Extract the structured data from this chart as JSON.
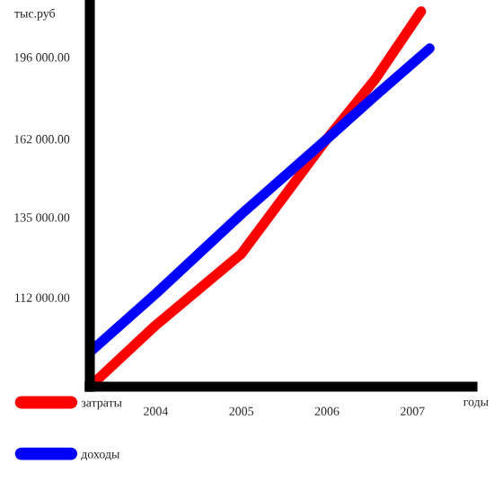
{
  "chart_data": {
    "type": "line",
    "ylabel": "тыс.руб",
    "xlabel": "годы",
    "log": "y",
    "xlim": [
      2003.23,
      2007.7
    ],
    "ylim": [
      91000,
      222000
    ],
    "xticks": [
      2004,
      2005,
      2006,
      2007
    ],
    "yticks": [
      {
        "value": 112000,
        "label": "112 000.00"
      },
      {
        "value": 135000,
        "label": "135 000.00"
      },
      {
        "value": 162000,
        "label": "162 000.00"
      },
      {
        "value": 196000,
        "label": "196 000.00"
      }
    ],
    "grid": false,
    "legend": "bottom",
    "marker": "none",
    "line_style": "solid",
    "series": [
      {
        "name": "затраты",
        "color": "#ff0000",
        "x": [
          2003.23,
          2004,
          2005,
          2006,
          2006.56,
          2007.1
        ],
        "values": [
          91000,
          105000,
          124000,
          162000,
          186000,
          218000
        ]
      },
      {
        "name": "доходы",
        "color": "#0000ff",
        "x": [
          2003.23,
          2004,
          2005,
          2006,
          2006.56,
          2007.2
        ],
        "values": [
          98600,
          113000,
          136000,
          162000,
          179000,
          200000
        ]
      }
    ]
  }
}
